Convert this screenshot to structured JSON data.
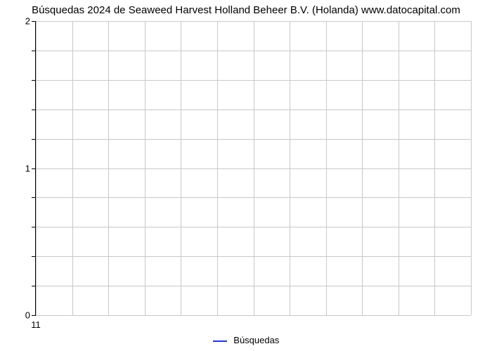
{
  "chart": {
    "type": "line",
    "title": "Búsquedas 2024 de Seaweed Harvest Holland Beheer B.V. (Holanda) www.datocapital.com",
    "title_fontsize": 15,
    "title_color": "#000000",
    "background_color": "#ffffff",
    "plot_border_color": "#000000",
    "grid_color": "#c8c8c8",
    "axis_label_fontsize": 13,
    "axis_label_color": "#000000",
    "y_axis": {
      "ylim": [
        0,
        2
      ],
      "major_ticks": [
        0,
        1,
        2
      ],
      "minor_rows": 10
    },
    "x_axis": {
      "xlim": [
        1,
        12
      ],
      "labels": [
        "11"
      ],
      "columns": 12
    },
    "series": {
      "name": "Búsquedas",
      "color": "#2037d0",
      "line_width": 2,
      "data": []
    },
    "legend": {
      "label": "Búsquedas",
      "position": "bottom-center"
    }
  }
}
